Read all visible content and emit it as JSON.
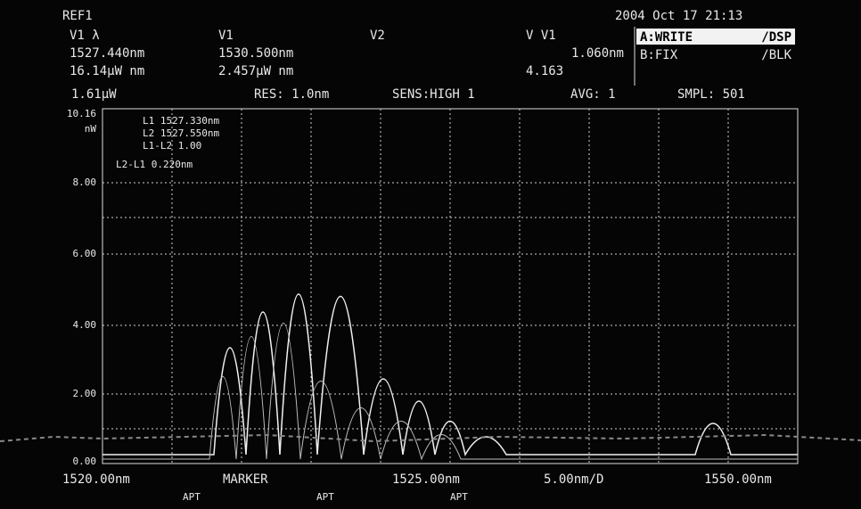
{
  "header": {
    "title": "REF1",
    "datetime": "2004 Oct 17 21:13"
  },
  "markers": {
    "labels": [
      "V1 λ",
      "V1",
      "V2",
      "V V1"
    ],
    "row1": [
      "1527.440nm",
      "1530.500nm",
      "1.060nm"
    ],
    "row2": [
      "16.14μW nm",
      "2.457μW nm",
      "4.163"
    ]
  },
  "traces": {
    "a": "A:WRITE",
    "a_mode": "/DSP",
    "b": "B:FIX",
    "b_mode": "/BLK"
  },
  "status": [
    "1.61μW",
    "RES: 1.0nm",
    "SENS:HIGH 1",
    "AVG: 1",
    "SMPL: 501"
  ],
  "y_labels": [
    "10.16",
    "nW",
    "8.00",
    "6.00",
    "4.00",
    "2.00",
    "0.00"
  ],
  "marker_box": [
    "L1 1527.330nm",
    "L2 1527.550nm",
    "L1-L2 1.00",
    "L2-L1   0.220nm"
  ],
  "x_labels": [
    "1520.00nm",
    "MARKER",
    "1525.00nm",
    "5.00nm/D",
    "1550.00nm"
  ],
  "softkeys": [
    "APT",
    "APT",
    "APT"
  ]
}
